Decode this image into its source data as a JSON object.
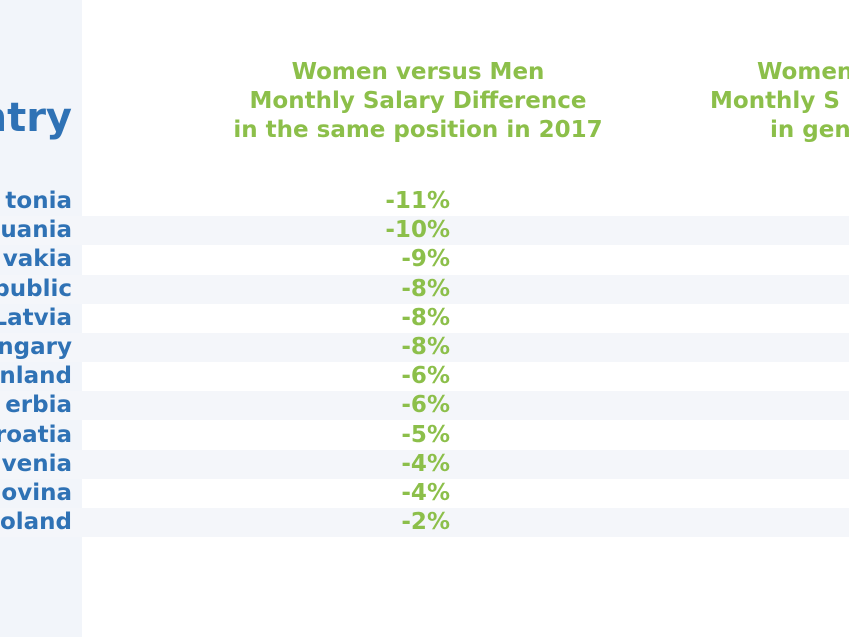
{
  "header": {
    "country": "ntry"
  },
  "columns": [
    {
      "title": [
        "Women versus Men",
        "Monthly Salary Difference",
        "in the same position in 2017"
      ]
    },
    {
      "title": [
        "Women",
        "Monthly S",
        "in gen"
      ]
    }
  ],
  "rows": [
    {
      "country": "tonia",
      "value": "-11%"
    },
    {
      "country": "uania",
      "value": "-10%"
    },
    {
      "country": "vakia",
      "value": "-9%"
    },
    {
      "country": "public",
      "value": "-8%"
    },
    {
      "country": "Latvia",
      "value": "-8%"
    },
    {
      "country": "ngary",
      "value": "-8%"
    },
    {
      "country": "nland",
      "value": "-6%"
    },
    {
      "country": "erbia",
      "value": "-6%"
    },
    {
      "country": "roatia",
      "value": "-5%"
    },
    {
      "country": "venia",
      "value": "-4%"
    },
    {
      "country": "ovina",
      "value": "-4%"
    },
    {
      "country": "oland",
      "value": "-2%"
    }
  ]
}
